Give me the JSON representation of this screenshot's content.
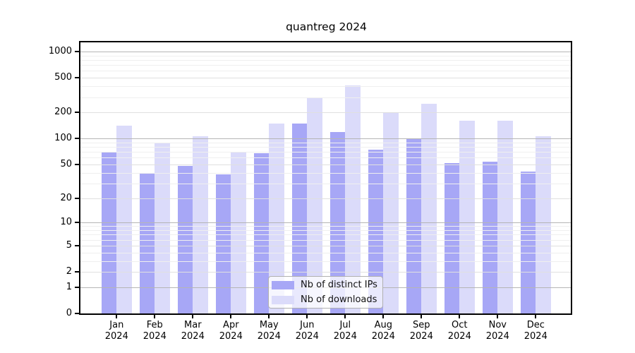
{
  "title": "quantreg 2024",
  "chart_data": {
    "type": "bar",
    "title": "quantreg 2024",
    "x_categories": [
      "Jan 2024",
      "Feb 2024",
      "Mar 2024",
      "Apr 2024",
      "May 2024",
      "Jun 2024",
      "Jul 2024",
      "Aug 2024",
      "Sep 2024",
      "Oct 2024",
      "Nov 2024",
      "Dec 2024"
    ],
    "series": [
      {
        "name": "Nb of distinct IPs",
        "color": "#a7a7f6",
        "values": [
          70,
          40,
          48,
          38,
          67,
          150,
          119,
          74,
          100,
          52,
          54,
          41
        ]
      },
      {
        "name": "Nb of downloads",
        "color": "#dbdbfa",
        "values": [
          140,
          90,
          107,
          70,
          150,
          290,
          410,
          200,
          250,
          160,
          160,
          107
        ]
      }
    ],
    "y_scale": "log1p",
    "y_ticks": [
      0,
      1,
      2,
      5,
      10,
      20,
      50,
      100,
      200,
      500,
      1000
    ],
    "y_mid_ticks": [
      2,
      5,
      20,
      50,
      200,
      500
    ],
    "y_minor_gridlines": [
      3,
      4,
      6,
      7,
      8,
      9,
      30,
      40,
      60,
      70,
      80,
      90,
      300,
      400,
      600,
      700,
      800,
      900
    ],
    "ylim": [
      0,
      1276
    ],
    "grid": "on",
    "legend_position": "lower center",
    "colors": {
      "bar_dark": "#a7a7f6",
      "bar_light": "#dbdbfa",
      "axis": "#000000",
      "grid_major": "#b5b5b5",
      "grid_mid": "#e0e0e0",
      "grid_minor": "#efefef",
      "background": "#ffffff"
    }
  }
}
